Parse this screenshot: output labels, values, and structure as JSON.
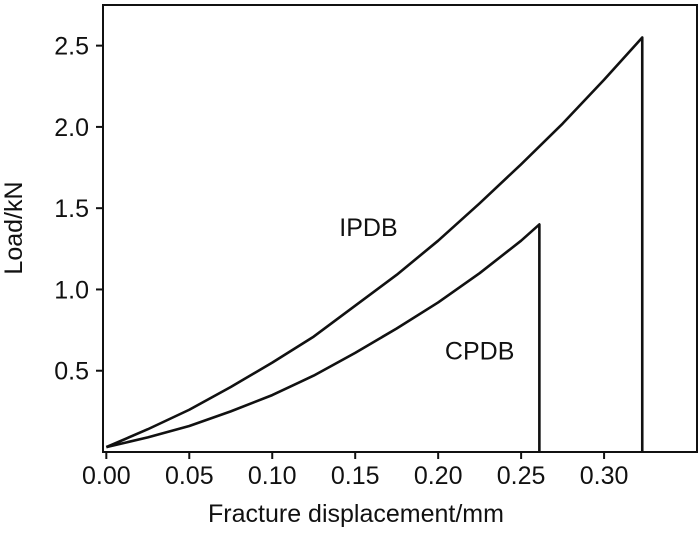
{
  "chart_data": {
    "type": "line",
    "xlabel": "Fracture displacement/mm",
    "ylabel": "Load/kN",
    "xlim": [
      -0.002,
      0.356
    ],
    "ylim": [
      0,
      2.75
    ],
    "xticks": [
      {
        "value": 0,
        "label": "0.00"
      },
      {
        "value": 0.05,
        "label": "0.05"
      },
      {
        "value": 0.1,
        "label": "0.10"
      },
      {
        "value": 0.15,
        "label": "0.15"
      },
      {
        "value": 0.2,
        "label": "0.20"
      },
      {
        "value": 0.25,
        "label": "0.25"
      },
      {
        "value": 0.3,
        "label": "0.30"
      }
    ],
    "yticks": [
      0.5,
      {
        "value": 1,
        "label": "1.0"
      },
      1.5,
      {
        "value": 2,
        "label": "2.0"
      },
      2.5
    ],
    "grid": false,
    "series": [
      {
        "name": "IPDB",
        "color": "#111111",
        "x": [
          0,
          0.025,
          0.05,
          0.075,
          0.1,
          0.125,
          0.15,
          0.175,
          0.2,
          0.225,
          0.25,
          0.275,
          0.3,
          0.323,
          0.323
        ],
        "values": [
          0.03,
          0.14,
          0.26,
          0.4,
          0.55,
          0.71,
          0.9,
          1.09,
          1.3,
          1.53,
          1.77,
          2.02,
          2.29,
          2.55,
          0
        ]
      },
      {
        "name": "CPDB",
        "color": "#111111",
        "x": [
          0,
          0.025,
          0.05,
          0.075,
          0.1,
          0.125,
          0.15,
          0.175,
          0.2,
          0.225,
          0.25,
          0.261,
          0.261
        ],
        "values": [
          0.03,
          0.09,
          0.16,
          0.25,
          0.35,
          0.47,
          0.61,
          0.76,
          0.92,
          1.1,
          1.3,
          1.4,
          0
        ]
      }
    ],
    "annotations": [
      {
        "text": "IPDB",
        "x": 0.158,
        "y": 1.33
      },
      {
        "text": "CPDB",
        "x": 0.225,
        "y": 0.57
      }
    ]
  }
}
